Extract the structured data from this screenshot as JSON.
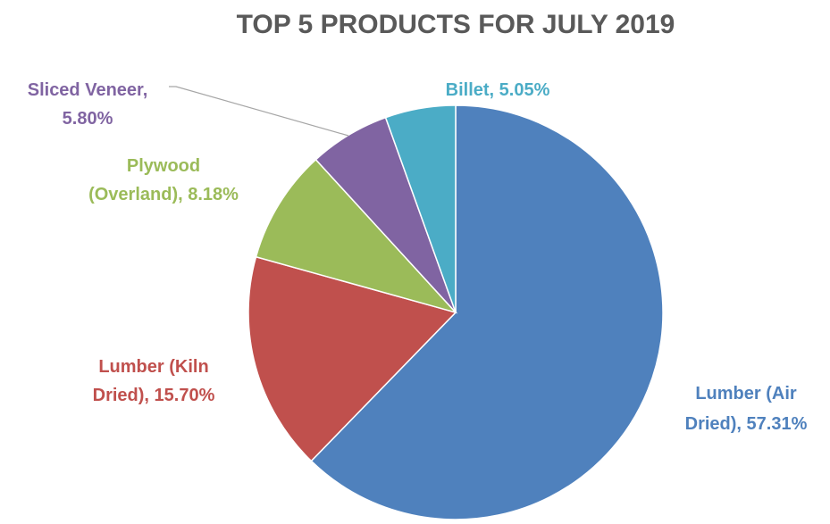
{
  "chart_data": {
    "type": "pie",
    "title": "TOP 5 PRODUCTS FOR JULY 2019",
    "title_color": "#595959",
    "start_angle_deg": 0,
    "direction": "clockwise",
    "slices": [
      {
        "name": "Lumber (Air Dried)",
        "value": 57.31,
        "label": [
          "Lumber (Air",
          "Dried), 57.31%"
        ],
        "color": "#4F81BD"
      },
      {
        "name": "Lumber (Kiln Dried)",
        "value": 15.7,
        "label": [
          "Lumber (Kiln",
          "Dried), 15.70%"
        ],
        "color": "#C0504D"
      },
      {
        "name": "Plywood (Overland)",
        "value": 8.18,
        "label": [
          "Plywood",
          "(Overland), 8.18%"
        ],
        "color": "#9BBB59"
      },
      {
        "name": "Sliced Veneer",
        "value": 5.8,
        "label": [
          "Sliced Veneer,",
          "5.80%"
        ],
        "color": "#8064A2"
      },
      {
        "name": "Billet",
        "value": 5.05,
        "label": [
          "Billet, 5.05%"
        ],
        "color": "#4BACC6"
      }
    ]
  }
}
